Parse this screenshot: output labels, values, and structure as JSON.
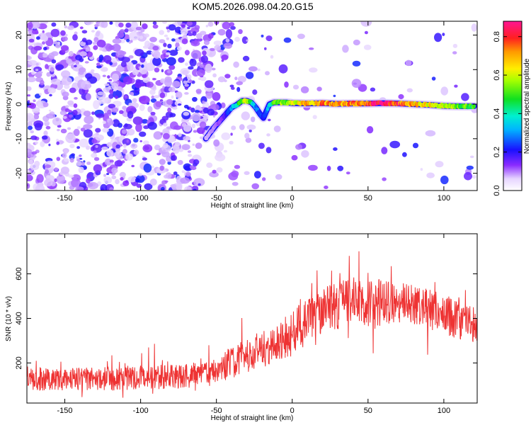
{
  "title": "KOM5.2026.098.04.20.G15",
  "chart_data": [
    {
      "type": "heatmap",
      "title": "KOM5.2026.098.04.20.G15",
      "xlabel": "Height of straight line (km)",
      "ylabel": "Frequency (Hz)",
      "xlim": [
        -175,
        122
      ],
      "ylim": [
        -25,
        24
      ],
      "x_ticks": [
        -150,
        -100,
        -50,
        0,
        50,
        100
      ],
      "y_ticks": [
        -20,
        -10,
        0,
        10,
        20
      ],
      "x_tick_labels": [
        "-150",
        "-100",
        "-50",
        "0",
        "50",
        "100"
      ],
      "y_tick_labels": [
        "-20",
        "-10",
        "0",
        "10",
        "20"
      ],
      "ridge": {
        "x": [
          -57,
          -52,
          -48,
          -44,
          -40,
          -36,
          -33,
          -30,
          -27,
          -24,
          -21,
          -19,
          -17,
          -15,
          -12,
          -8,
          -4,
          0,
          10,
          20,
          30,
          40,
          50,
          60,
          70,
          80,
          90,
          100,
          110,
          120
        ],
        "y": [
          -10,
          -7,
          -5,
          -3,
          -1,
          0,
          1,
          1,
          0.5,
          -1,
          -3,
          -4,
          -2,
          0,
          0.5,
          0.5,
          0.5,
          0.3,
          0.2,
          0.3,
          0.1,
          0.2,
          0.2,
          0.3,
          0.2,
          0.0,
          -0.2,
          -0.5,
          -0.6,
          -0.6
        ],
        "amplitude": [
          0.05,
          0.08,
          0.12,
          0.18,
          0.3,
          0.45,
          0.55,
          0.6,
          0.45,
          0.3,
          0.25,
          0.2,
          0.3,
          0.4,
          0.5,
          0.55,
          0.55,
          0.6,
          0.7,
          0.75,
          0.7,
          0.75,
          0.8,
          0.9,
          0.8,
          0.7,
          0.65,
          0.6,
          0.55,
          0.5
        ]
      },
      "colorbar": {
        "label": "Normalized spectral amplitude",
        "range": [
          0.0,
          0.88
        ],
        "ticks": [
          0.0,
          0.2,
          0.4,
          0.6,
          0.8
        ],
        "tick_labels": [
          "0.0",
          "0.2",
          "0.4",
          "0.6",
          "0.8"
        ]
      }
    },
    {
      "type": "line",
      "xlabel": "Height of straight line (km)",
      "ylabel": "SNR (10 * v/v)",
      "xlim": [
        -175,
        122
      ],
      "ylim": [
        20,
        780
      ],
      "x_ticks": [
        -150,
        -100,
        -50,
        0,
        50,
        100
      ],
      "y_ticks": [
        200,
        400,
        600
      ],
      "x_tick_labels": [
        "-150",
        "-100",
        "-50",
        "0",
        "50",
        "100"
      ],
      "y_tick_labels": [
        "200",
        "400",
        "600"
      ],
      "color": "#ee3333",
      "series": [
        {
          "name": "SNR",
          "trend_x": [
            -175,
            -150,
            -125,
            -100,
            -75,
            -55,
            -40,
            -25,
            -10,
            0,
            15,
            30,
            45,
            55,
            70,
            85,
            100,
            110,
            122
          ],
          "trend_y": [
            130,
            125,
            130,
            135,
            140,
            150,
            200,
            250,
            290,
            330,
            420,
            460,
            480,
            470,
            470,
            450,
            420,
            390,
            360
          ],
          "spread": [
            55,
            50,
            55,
            55,
            55,
            60,
            70,
            80,
            90,
            100,
            110,
            110,
            110,
            110,
            100,
            95,
            90,
            85,
            85
          ]
        }
      ]
    }
  ]
}
